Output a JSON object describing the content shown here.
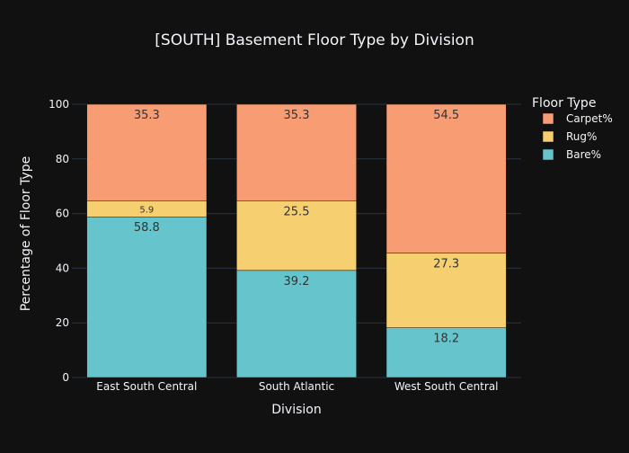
{
  "chart_data": {
    "type": "bar",
    "stacked": true,
    "title": "[SOUTH] Basement Floor Type by Division",
    "xlabel": "Division",
    "ylabel": "Percentage of Floor Type",
    "ylim": [
      0,
      100
    ],
    "yticks": [
      0,
      20,
      40,
      60,
      80,
      100
    ],
    "grid": true,
    "categories": [
      "East South Central",
      "South Atlantic",
      "West South Central"
    ],
    "series": [
      {
        "name": "Bare%",
        "color": "#66c5cc",
        "values": [
          58.8,
          39.2,
          18.2
        ]
      },
      {
        "name": "Rug%",
        "color": "#f6cf71",
        "values": [
          5.9,
          25.5,
          27.3
        ]
      },
      {
        "name": "Carpet%",
        "color": "#f89c74",
        "values": [
          35.3,
          35.3,
          54.5
        ]
      }
    ],
    "legend": {
      "title": "Floor Type",
      "placement": "right",
      "order": [
        "Carpet%",
        "Rug%",
        "Bare%"
      ]
    }
  },
  "colors": {
    "background": "#111111",
    "grid": "#283442",
    "axis_text": "#f2f5fa",
    "label_text": "#333333"
  }
}
